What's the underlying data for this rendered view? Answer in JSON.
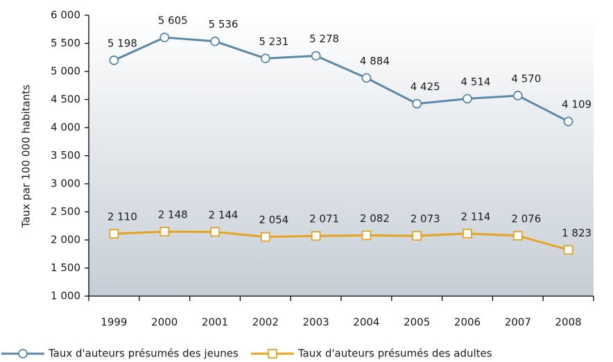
{
  "chart_data": {
    "type": "line",
    "y_axis_label": "Taux par 100 000 habitants",
    "categories": [
      "1999",
      "2000",
      "2001",
      "2002",
      "2003",
      "2004",
      "2005",
      "2006",
      "2007",
      "2008"
    ],
    "series": [
      {
        "name": "Taux d'auteurs présumés des jeunes",
        "color": "#5b88a8",
        "marker": "circle",
        "values": [
          5198,
          5605,
          5536,
          5231,
          5278,
          4884,
          4425,
          4514,
          4570,
          4109
        ],
        "value_labels": [
          "5 198",
          "5 605",
          "5 536",
          "5 231",
          "5 278",
          "4 884",
          "4 425",
          "4 514",
          "4 570",
          "4 109"
        ]
      },
      {
        "name": "Taux d'auteurs présumés des adultes",
        "color": "#e8a21c",
        "marker": "square",
        "values": [
          2110,
          2148,
          2144,
          2054,
          2071,
          2082,
          2073,
          2114,
          2076,
          1823
        ],
        "value_labels": [
          "2 110",
          "2 148",
          "2 144",
          "2 054",
          "2 071",
          "2 082",
          "2 073",
          "2 114",
          "2 076",
          "1 823"
        ]
      }
    ],
    "ylim": [
      1000,
      6000
    ],
    "yticks": [
      {
        "value": 1000,
        "label": "1 000"
      },
      {
        "value": 1500,
        "label": "1 500"
      },
      {
        "value": 2000,
        "label": "2 000"
      },
      {
        "value": 2500,
        "label": "2 500"
      },
      {
        "value": 3000,
        "label": "3 000"
      },
      {
        "value": 3500,
        "label": "3 500"
      },
      {
        "value": 4000,
        "label": "4 000"
      },
      {
        "value": 4500,
        "label": "4 500"
      },
      {
        "value": 5000,
        "label": "5 000"
      },
      {
        "value": 5500,
        "label": "5 500"
      },
      {
        "value": 6000,
        "label": "6 000"
      }
    ],
    "legend": "bottom"
  }
}
